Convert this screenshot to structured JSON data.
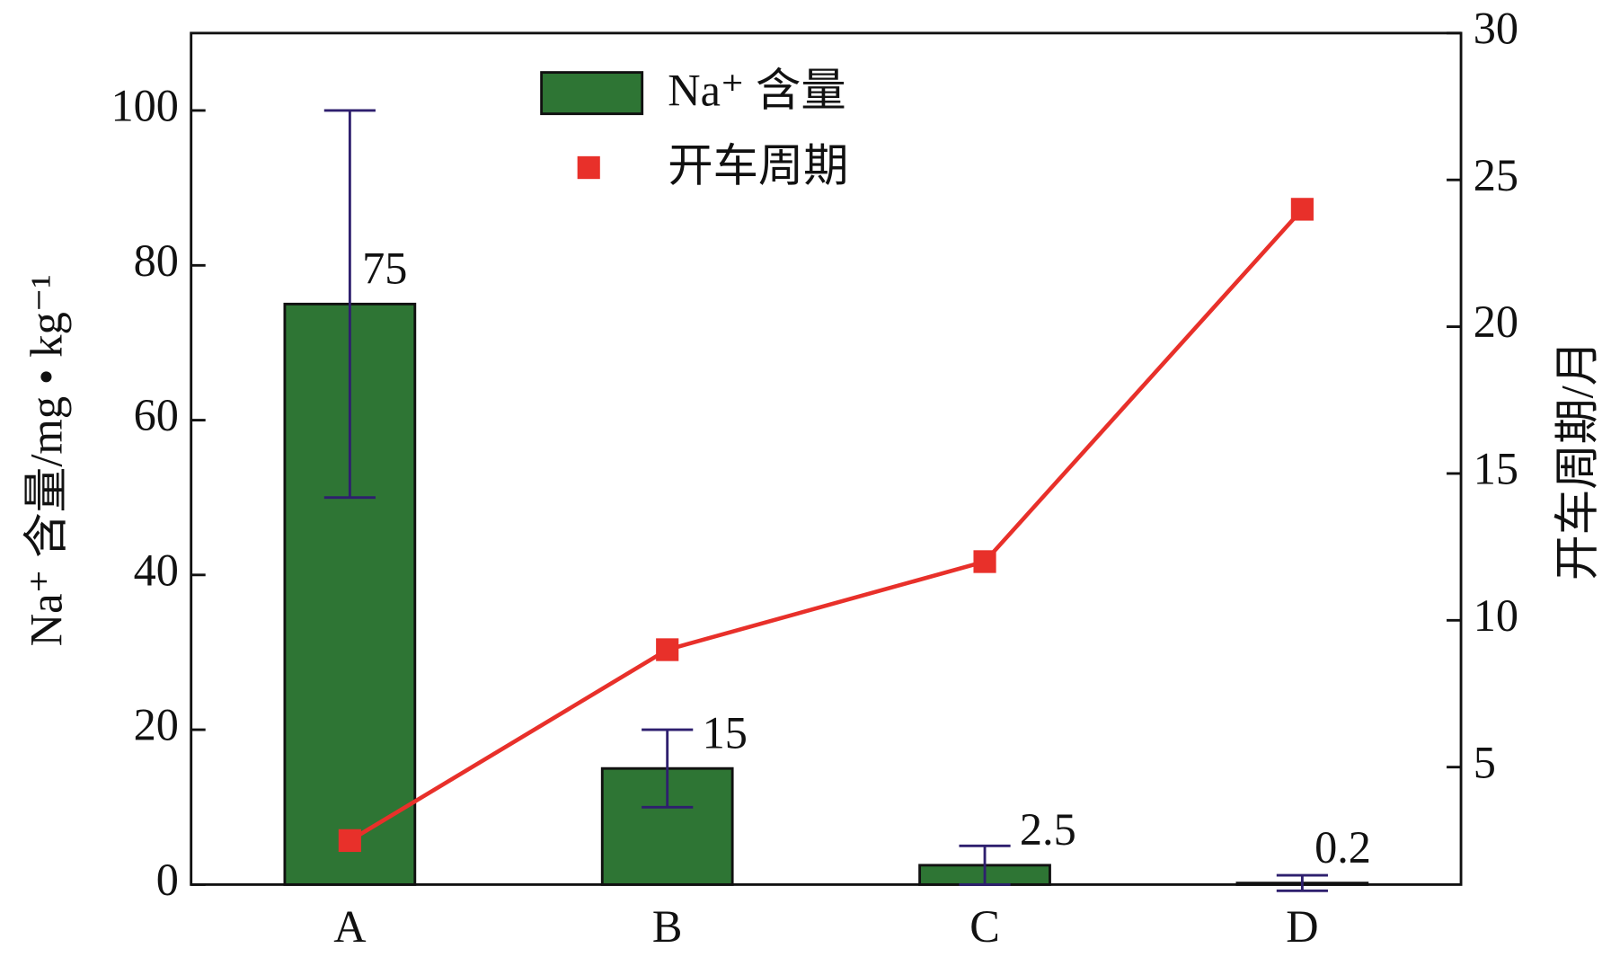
{
  "chart_data": {
    "type": "bar",
    "categories": [
      "A",
      "B",
      "C",
      "D"
    ],
    "ylabel": "Na⁺ 含量/mg • kg⁻¹",
    "y2label": "开车周期/月",
    "ylim": [
      0,
      110
    ],
    "yticks": [
      0,
      20,
      40,
      60,
      80,
      100
    ],
    "y2lim": [
      1,
      30
    ],
    "y2ticks": [
      5,
      10,
      15,
      20,
      25,
      30
    ],
    "legend_position": "upper center",
    "error_color": "#2e1f6e",
    "series": [
      {
        "name": "Na⁺ 含量",
        "type": "bar",
        "color": "#2e7534",
        "values": [
          75,
          15,
          2.5,
          0.2
        ],
        "errors": [
          25,
          5,
          2.5,
          1
        ]
      },
      {
        "name": "开车周期",
        "type": "line",
        "axis": "y2",
        "color": "#e8302a",
        "values": [
          2.5,
          9,
          12,
          24
        ]
      }
    ]
  }
}
